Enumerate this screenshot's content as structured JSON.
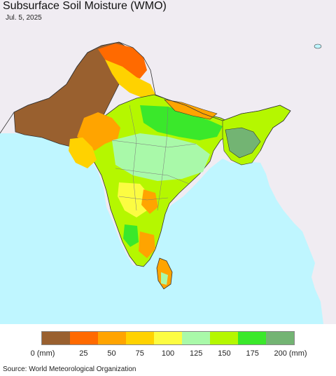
{
  "header": {
    "title": "Subsurface Soil Moisture (WMO)",
    "date": "Jul. 5, 2025"
  },
  "legend": {
    "colors": [
      "#99602f",
      "#ff6a00",
      "#ffa400",
      "#ffd200",
      "#fcfc42",
      "#a9f9a9",
      "#b5f700",
      "#3ae82b",
      "#73b473"
    ],
    "ticks": [
      "0 (mm)",
      "25",
      "50",
      "75",
      "100",
      "125",
      "150",
      "175",
      "200 (mm)"
    ]
  },
  "footer": {
    "source": "Source: World Meteorological Organization"
  },
  "map": {
    "colors": {
      "ocean": "#bff6ff",
      "outside_land": "#f0ecf2",
      "border": "#333333",
      "state_border": "#7a7a7a"
    }
  }
}
